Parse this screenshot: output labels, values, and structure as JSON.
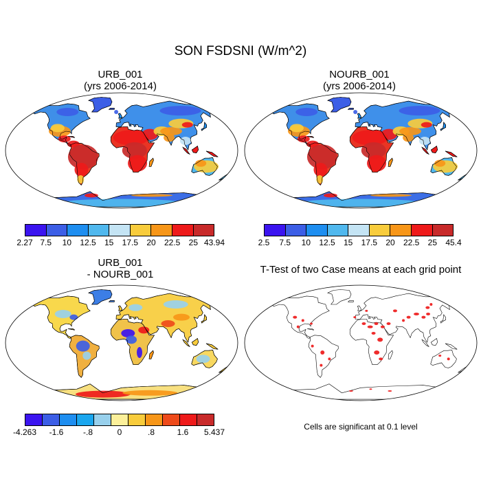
{
  "figure": {
    "title": "SON FSDSNI (W/m^2)",
    "note": "Cells are significant at 0.1 level"
  },
  "panels": [
    {
      "id": "urb",
      "title_line1": "URB_001",
      "title_line2": "(yrs 2006-2014)",
      "colorbar": {
        "colors": [
          "#3b14f0",
          "#3c5ee6",
          "#1e8ef0",
          "#50b8ee",
          "#c4e4f4",
          "#f8cc3c",
          "#f79618",
          "#ee1a1a",
          "#c82a2a"
        ],
        "labels": [
          "2.27",
          "7.5",
          "10",
          "12.5",
          "15",
          "17.5",
          "20",
          "22.5",
          "25",
          "43.94"
        ]
      }
    },
    {
      "id": "nourb",
      "title_line1": "NOURB_001",
      "title_line2": "(yrs 2006-2014)",
      "colorbar": {
        "colors": [
          "#3b14f0",
          "#3c5ee6",
          "#1e8ef0",
          "#50b8ee",
          "#c4e4f4",
          "#f8cc3c",
          "#f79618",
          "#ee1a1a",
          "#c82a2a"
        ],
        "labels": [
          "2.5",
          "7.5",
          "10",
          "12.5",
          "15",
          "17.5",
          "20",
          "22.5",
          "25",
          "45.4"
        ]
      }
    },
    {
      "id": "diff",
      "title_line1": "URB_001",
      "title_line2": "- NOURB_001",
      "colorbar": {
        "colors": [
          "#3b14f0",
          "#3c5ee6",
          "#1e8ef0",
          "#1aa6ee",
          "#98d0ec",
          "#fcf09a",
          "#f8cc3c",
          "#f79618",
          "#ee4a1a",
          "#ee1a1a",
          "#c82a2a"
        ],
        "labels": [
          "-4.263",
          "-1.6",
          "-.8",
          "0",
          ".8",
          "1.6",
          "5.437"
        ],
        "label_slots": [
          0,
          2,
          4,
          6,
          8,
          10,
          12
        ]
      }
    },
    {
      "id": "ttest",
      "title_line1": "T-Test of two Case means at each grid point"
    }
  ]
}
